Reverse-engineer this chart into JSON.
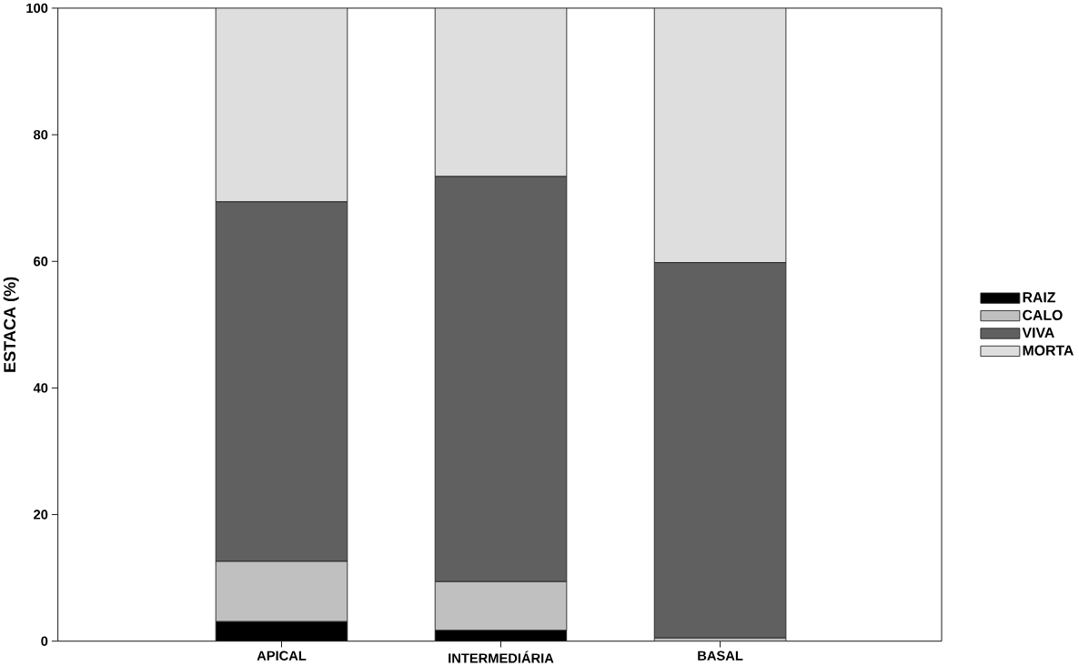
{
  "chart_data": {
    "type": "bar",
    "stacked": true,
    "ylabel": "ESTACA (%)",
    "categories": [
      "APICAL",
      "INTERMEDIÁRIA",
      "BASAL"
    ],
    "series": [
      {
        "name": "RAIZ",
        "color": "#000000",
        "values": [
          3.1,
          1.7,
          0
        ]
      },
      {
        "name": "CALO",
        "color": "#c0c0c0",
        "values": [
          9.5,
          7.7,
          0.5
        ]
      },
      {
        "name": "VIVA",
        "color": "#606060",
        "values": [
          56.8,
          64.0,
          59.3
        ]
      },
      {
        "name": "MORTA",
        "color": "#dedede",
        "values": [
          30.6,
          26.6,
          40.2
        ]
      }
    ],
    "ylim": [
      0,
      100
    ],
    "yticks": [
      0,
      20,
      40,
      60,
      80,
      100
    ],
    "legend": "right",
    "grid": false
  }
}
